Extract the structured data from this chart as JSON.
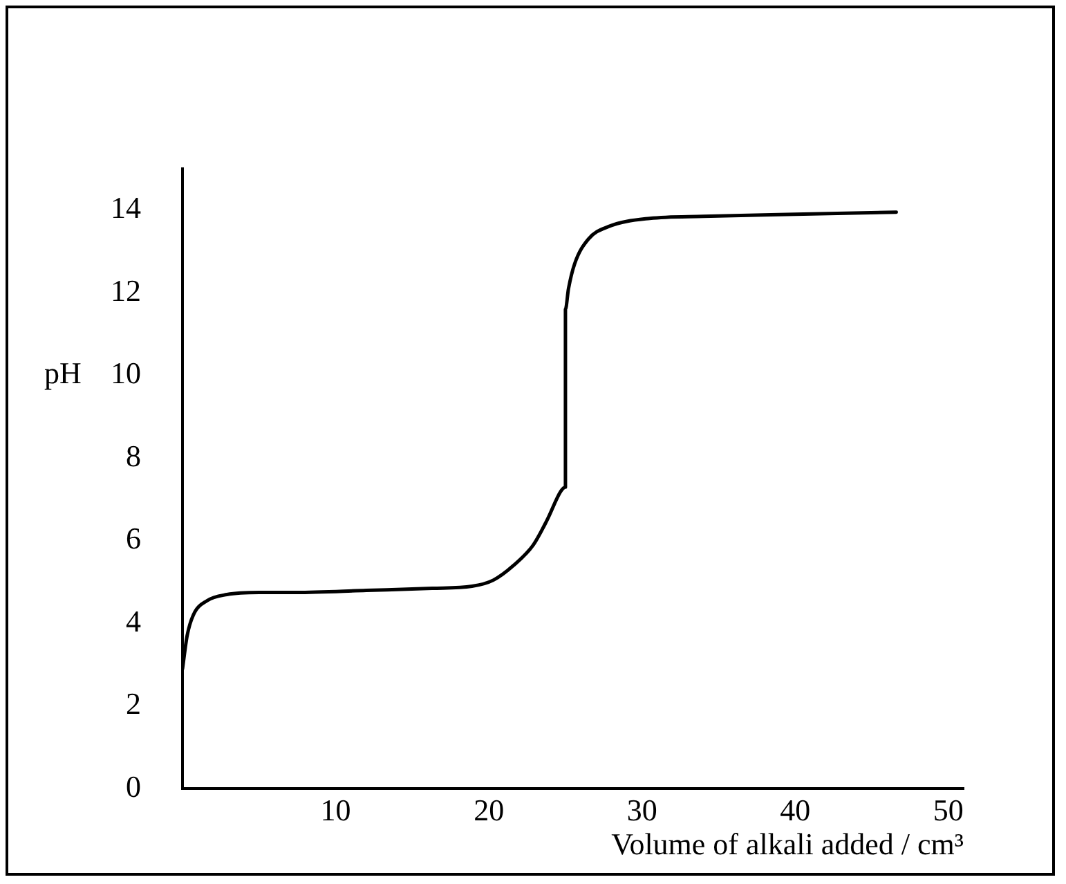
{
  "chart_data": {
    "type": "line",
    "xlabel": "Volume of alkali added / cm³",
    "ylabel": "pH",
    "xlim": [
      0,
      51
    ],
    "xticks": [
      10,
      20,
      30,
      40,
      50
    ],
    "ylim": [
      0,
      15
    ],
    "yticks": [
      0,
      2,
      4,
      6,
      8,
      10,
      12,
      14
    ],
    "grid": false,
    "legend": false,
    "marker": "none",
    "line_style": "solid",
    "series": [
      {
        "color": "#000000",
        "x": [
          0,
          0.3,
          0.7,
          1.6,
          2.9,
          5,
          7.4,
          12,
          16.3,
          18.9,
          20.3,
          21.6,
          22.9,
          23.8,
          24.7,
          25,
          25,
          25.2,
          25.6,
          26.5,
          27.8,
          30.5,
          34,
          40,
          46.6
        ],
        "values": [
          2.9,
          3.7,
          4.2,
          4.55,
          4.7,
          4.75,
          4.75,
          4.8,
          4.85,
          4.9,
          5.05,
          5.4,
          5.9,
          6.5,
          7.2,
          7.3,
          11.6,
          12.1,
          12.7,
          13.3,
          13.6,
          13.8,
          13.85,
          13.9,
          13.95
        ]
      }
    ]
  }
}
